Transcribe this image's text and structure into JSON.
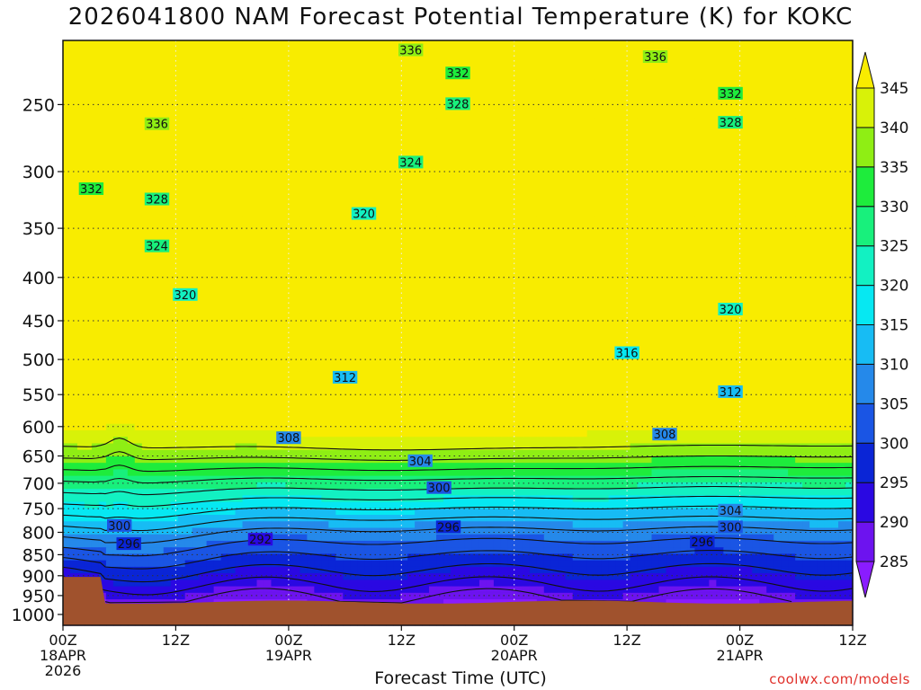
{
  "title": "2026041800 NAM Forecast Potential Temperature (K) for KOKC",
  "credit": "coolwx.com/models",
  "chart_data": {
    "type": "heatmap",
    "title": "2026041800 NAM Forecast Potential Temperature (K) for KOKC",
    "xlabel": "Forecast Time (UTC)",
    "ylabel": "",
    "x_ticks": [
      {
        "hour": 0,
        "lines": [
          "00Z",
          "18APR",
          "2026"
        ]
      },
      {
        "hour": 12,
        "lines": [
          "12Z"
        ]
      },
      {
        "hour": 24,
        "lines": [
          "00Z",
          "19APR"
        ]
      },
      {
        "hour": 36,
        "lines": [
          "12Z"
        ]
      },
      {
        "hour": 48,
        "lines": [
          "00Z",
          "20APR"
        ]
      },
      {
        "hour": 60,
        "lines": [
          "12Z"
        ]
      },
      {
        "hour": 72,
        "lines": [
          "00Z",
          "21APR"
        ]
      },
      {
        "hour": 84,
        "lines": [
          "12Z"
        ]
      }
    ],
    "xlim": [
      0,
      84
    ],
    "y_ticks": [
      250,
      300,
      350,
      400,
      450,
      500,
      550,
      600,
      650,
      700,
      750,
      800,
      850,
      900,
      950,
      1000
    ],
    "ylim": [
      1030,
      210
    ],
    "grid": true,
    "colorbar": {
      "levels": [
        285,
        290,
        295,
        300,
        305,
        310,
        315,
        320,
        325,
        330,
        335,
        340,
        345
      ],
      "colors": [
        "#8a1cff",
        "#6d13ef",
        "#2a08e2",
        "#0a25d6",
        "#1a55e4",
        "#2589ea",
        "#17bcf4",
        "#06e8f2",
        "#12f1c2",
        "#18f07c",
        "#1eec3c",
        "#8fee14",
        "#d8f208",
        "#f8ec00"
      ]
    },
    "contour_interval": 4,
    "contour_labels": [
      {
        "value": "336",
        "hour": 37,
        "p": 216
      },
      {
        "value": "336",
        "hour": 63,
        "p": 220
      },
      {
        "value": "336",
        "hour": 10,
        "p": 264
      },
      {
        "value": "332",
        "hour": 42,
        "p": 230
      },
      {
        "value": "332",
        "hour": 71,
        "p": 243
      },
      {
        "value": "332",
        "hour": 3,
        "p": 315
      },
      {
        "value": "328",
        "hour": 42,
        "p": 250
      },
      {
        "value": "328",
        "hour": 71,
        "p": 263
      },
      {
        "value": "328",
        "hour": 10,
        "p": 324
      },
      {
        "value": "324",
        "hour": 37,
        "p": 293
      },
      {
        "value": "324",
        "hour": 10,
        "p": 368
      },
      {
        "value": "320",
        "hour": 32,
        "p": 337
      },
      {
        "value": "320",
        "hour": 13,
        "p": 420
      },
      {
        "value": "320",
        "hour": 71,
        "p": 437
      },
      {
        "value": "316",
        "hour": 60,
        "p": 492
      },
      {
        "value": "312",
        "hour": 30,
        "p": 526
      },
      {
        "value": "312",
        "hour": 71,
        "p": 547
      },
      {
        "value": "308",
        "hour": 24,
        "p": 620
      },
      {
        "value": "308",
        "hour": 64,
        "p": 614
      },
      {
        "value": "304",
        "hour": 38,
        "p": 660
      },
      {
        "value": "304",
        "hour": 71,
        "p": 755
      },
      {
        "value": "300",
        "hour": 40,
        "p": 710
      },
      {
        "value": "300",
        "hour": 71,
        "p": 790
      },
      {
        "value": "300",
        "hour": 6,
        "p": 787
      },
      {
        "value": "296",
        "hour": 41,
        "p": 790
      },
      {
        "value": "296",
        "hour": 68,
        "p": 823
      },
      {
        "value": "296",
        "hour": 7,
        "p": 827
      },
      {
        "value": "292",
        "hour": 21,
        "p": 817
      }
    ]
  }
}
